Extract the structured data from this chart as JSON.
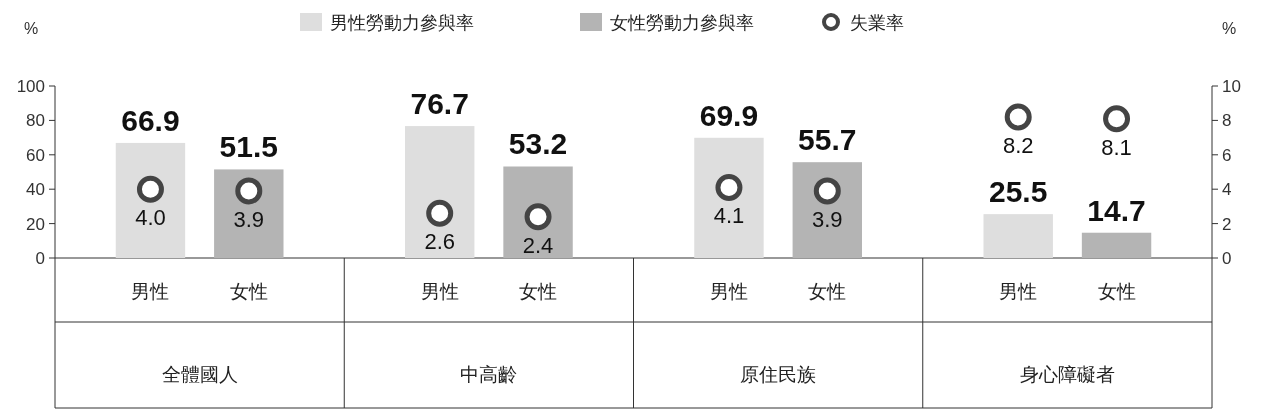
{
  "chart_data": {
    "type": "bar",
    "ylabel": "%",
    "y2label": "%",
    "categories": [
      "男性",
      "女性",
      "男性",
      "女性",
      "男性",
      "女性",
      "男性",
      "女性"
    ],
    "annotations": [
      "全體國人",
      "中高齡",
      "原住民族",
      "身心障礙者"
    ],
    "series": [
      {
        "name": "男性勞動力參與率",
        "color": "#dedede",
        "values": [
          66.9,
          null,
          76.7,
          null,
          69.9,
          null,
          25.5,
          null
        ],
        "value_labels": [
          "66.9",
          null,
          "76.7",
          null,
          "69.9",
          null,
          "25.5",
          null
        ]
      },
      {
        "name": "女性勞動力參與率",
        "color": "#b4b4b4",
        "values": [
          null,
          51.5,
          null,
          53.2,
          null,
          55.7,
          null,
          14.7
        ],
        "value_labels": [
          null,
          "51.5",
          null,
          "53.2",
          null,
          "55.7",
          null,
          "14.7"
        ]
      },
      {
        "name": "失業率",
        "type": "scatter",
        "axis": "y2",
        "color": "#444444",
        "values": [
          4.0,
          3.9,
          2.6,
          2.4,
          4.1,
          3.9,
          8.2,
          8.1
        ],
        "value_labels": [
          "4.0",
          "3.9",
          "2.6",
          "2.4",
          "4.1",
          "3.9",
          "8.2",
          "8.1"
        ]
      }
    ],
    "ylim": [
      0,
      100
    ],
    "yticks": [
      0,
      20,
      40,
      60,
      80,
      100
    ],
    "y2lim": [
      0,
      10
    ],
    "y2ticks": [
      0,
      2,
      4,
      6,
      8,
      10
    ],
    "legend": "top",
    "marker": "circle",
    "grid": false
  }
}
